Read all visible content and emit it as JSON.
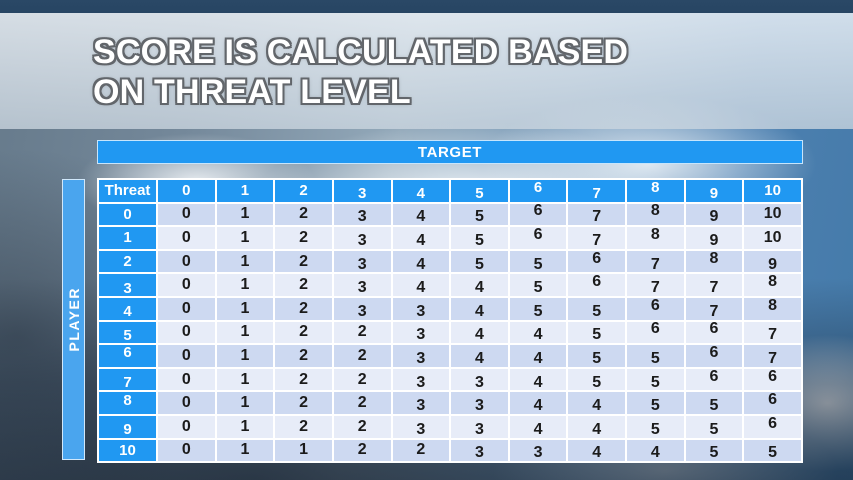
{
  "slide": {
    "title": "SCORE IS CALCULATED BASED ON THREAT LEVEL"
  },
  "table": {
    "target_label": "TARGET",
    "player_label": "PLAYER",
    "corner_label": "Threat",
    "column_headers": [
      "0",
      "1",
      "2",
      "3",
      "4",
      "5",
      "6",
      "7",
      "8",
      "9",
      "10"
    ],
    "rows": [
      {
        "header": "0",
        "values": [
          0,
          1,
          2,
          3,
          4,
          5,
          6,
          7,
          8,
          9,
          10
        ]
      },
      {
        "header": "1",
        "values": [
          0,
          1,
          2,
          3,
          4,
          5,
          6,
          7,
          8,
          9,
          10
        ]
      },
      {
        "header": "2",
        "values": [
          0,
          1,
          2,
          3,
          4,
          5,
          5,
          6,
          7,
          8,
          9
        ]
      },
      {
        "header": "3",
        "values": [
          0,
          1,
          2,
          3,
          4,
          4,
          5,
          6,
          7,
          7,
          8
        ]
      },
      {
        "header": "4",
        "values": [
          0,
          1,
          2,
          3,
          3,
          4,
          5,
          5,
          6,
          7,
          8
        ]
      },
      {
        "header": "5",
        "values": [
          0,
          1,
          2,
          2,
          3,
          4,
          4,
          5,
          6,
          6,
          7
        ]
      },
      {
        "header": "6",
        "values": [
          0,
          1,
          2,
          2,
          3,
          4,
          4,
          5,
          5,
          6,
          7
        ]
      },
      {
        "header": "7",
        "values": [
          0,
          1,
          2,
          2,
          3,
          3,
          4,
          5,
          5,
          6,
          6
        ]
      },
      {
        "header": "8",
        "values": [
          0,
          1,
          2,
          2,
          3,
          3,
          4,
          4,
          5,
          5,
          6
        ]
      },
      {
        "header": "9",
        "values": [
          0,
          1,
          2,
          2,
          3,
          3,
          4,
          4,
          5,
          5,
          6
        ]
      },
      {
        "header": "10",
        "values": [
          0,
          1,
          1,
          2,
          2,
          3,
          3,
          4,
          4,
          5,
          5
        ]
      }
    ]
  },
  "colors": {
    "accent_blue": "#2098f2",
    "player_bar_blue": "#4aa5ee",
    "row_band_dark": "#cdd9f1",
    "row_band_light": "#e7ecf8",
    "cell_text": "#1b1b1b",
    "header_text": "#ffffff"
  }
}
